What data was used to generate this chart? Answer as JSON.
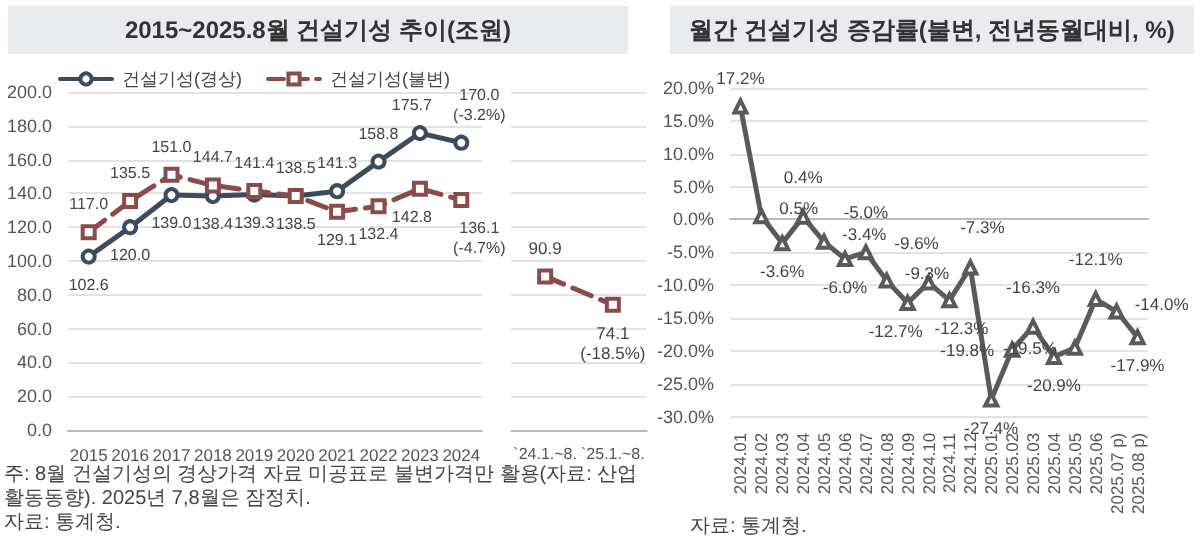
{
  "chart_data": [
    {
      "type": "line",
      "title": "2015~2025.8월 건설기성 추이(조원)",
      "categories": [
        "2015",
        "2016",
        "2017",
        "2018",
        "2019",
        "2020",
        "2021",
        "2022",
        "2023",
        "2024"
      ],
      "series": [
        {
          "name": "건설기성(경상)",
          "color": "#3e4a5e",
          "marker": "circle",
          "line_style": "solid",
          "values": [
            102.6,
            120.0,
            139.0,
            138.4,
            139.3,
            138.5,
            141.3,
            158.8,
            175.7,
            170.0
          ],
          "value_labels": [
            "102.6",
            "120.0",
            "139.0",
            "138.4",
            "139.3",
            "138.5",
            "141.3",
            "158.8",
            "175.7",
            "170.0\n(-3.2%)"
          ]
        },
        {
          "name": "건설기성(불변)",
          "color": "#8c4b4b",
          "marker": "square",
          "line_style": "dashed",
          "values": [
            117.0,
            135.5,
            151.0,
            144.7,
            141.4,
            138.5,
            129.1,
            132.4,
            142.8,
            136.1
          ],
          "value_labels": [
            "117.0",
            "135.5",
            "151.0",
            "144.7",
            "141.4",
            "138.5",
            "129.1",
            "132.4",
            "142.8",
            "136.1\n(-4.7%)"
          ]
        }
      ],
      "ylim": [
        0,
        200
      ],
      "yticks": [
        {
          "value": 0,
          "label": "0.0"
        },
        {
          "value": 20,
          "label": "20.0"
        },
        {
          "value": 40,
          "label": "40.0"
        },
        {
          "value": 60,
          "label": "60.0"
        },
        {
          "value": 80,
          "label": "80.0"
        },
        {
          "value": 100,
          "label": "100.0"
        },
        {
          "value": 120,
          "label": "120.0"
        },
        {
          "value": 140,
          "label": "140.0"
        },
        {
          "value": 160,
          "label": "160.0"
        },
        {
          "value": 180,
          "label": "180.0"
        },
        {
          "value": 200,
          "label": "200.0"
        }
      ],
      "grid": "y",
      "legend": "top",
      "annotations": [
        "주: 8월 건설기성의 경상가격 자료 미공표로 불변가격만 활용(자료: 산업활동동향). 2025년 7,8월은 잠정치.",
        "자료: 통계청."
      ]
    },
    {
      "type": "line",
      "categories": [
        "`24.1.~8.",
        "`25.1.~8."
      ],
      "series": [
        {
          "color": "#8c4b4b",
          "marker": "square",
          "line_style": "dashed",
          "values": [
            90.9,
            74.1
          ],
          "value_labels": [
            "90.9",
            "74.1\n(-18.5%)"
          ]
        }
      ],
      "ylim": [
        0,
        200
      ],
      "yticks": [
        0,
        20,
        40,
        60,
        80,
        100,
        120,
        140,
        160,
        180,
        200
      ],
      "grid": "y",
      "tick_labels": "x"
    },
    {
      "type": "line",
      "title": "월간 건설기성 증감률(불변, 전년동월대비, %)",
      "categories": [
        "2024.01",
        "2024.02",
        "2024.03",
        "2024.04",
        "2024.05",
        "2024.06",
        "2024.07",
        "2024.08",
        "2024.09",
        "2024.10",
        "2024.11",
        "2024.12",
        "2025.01",
        "2025.02",
        "2025.03",
        "2025.04",
        "2025.05",
        "2025.06",
        "2025.07 p)",
        "2025.08 p)"
      ],
      "series": [
        {
          "color": "#5a5a5a",
          "values": [
            17.2,
            0.5,
            -3.6,
            0.4,
            -3.4,
            -6.0,
            -5.0,
            -9.3,
            -12.7,
            -9.6,
            -12.3,
            -7.3,
            -27.4,
            -19.8,
            -16.3,
            -20.9,
            -19.5,
            -12.1,
            -14.0,
            -17.9
          ],
          "value_labels": [
            "17.2%",
            "0.5%",
            "-3.6%",
            "0.4%",
            "-3.4%",
            "-6.0%",
            "-5.0%",
            "-9.3%",
            "-12.7%",
            "-9.6%",
            "-12.3%",
            "-7.3%",
            "-27.4%",
            "-19.8%",
            "-16.3%",
            "-20.9%",
            "-19.5%",
            "-12.1%",
            "-14.0%",
            "-17.9%"
          ]
        }
      ],
      "ylim": [
        -30,
        20
      ],
      "yticks": [
        {
          "value": -30,
          "label": "-30.0%"
        },
        {
          "value": -25,
          "label": "-25.0%"
        },
        {
          "value": -20,
          "label": "-20.0%"
        },
        {
          "value": -15,
          "label": "-15.0%"
        },
        {
          "value": -10,
          "label": "-10.0%"
        },
        {
          "value": -5,
          "label": "-5.0%"
        },
        {
          "value": 0,
          "label": "0.0%"
        },
        {
          "value": 5,
          "label": "5.0%"
        },
        {
          "value": 10,
          "label": "10.0%"
        },
        {
          "value": 15,
          "label": "15.0%"
        },
        {
          "value": 20,
          "label": "20.0%"
        }
      ],
      "grid": "y",
      "marker": "triangle",
      "line_style": "solid",
      "annotations": [
        "자료: 통계청."
      ]
    }
  ]
}
